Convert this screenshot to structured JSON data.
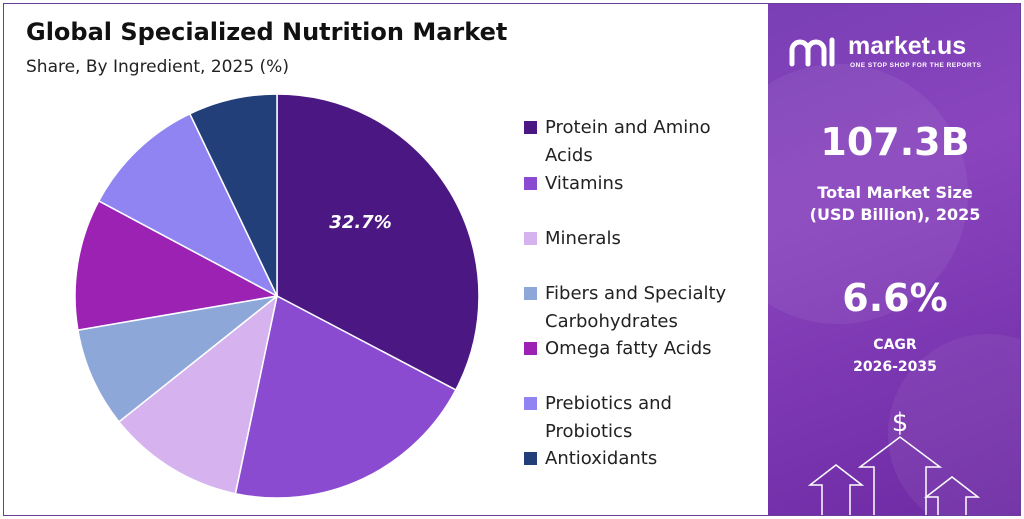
{
  "title": "Global Specialized Nutrition Market",
  "subtitle": "Share, By Ingredient, 2025 (%)",
  "chart_data": {
    "type": "pie",
    "title": "Global Specialized Nutrition Market",
    "subtitle": "Share, By Ingredient, 2025 (%)",
    "legend_position": "right",
    "slices": [
      {
        "name": "Protein and Amino Acids",
        "value": 32.7,
        "label": "32.7%",
        "color": "#4b1782"
      },
      {
        "name": "Vitamins",
        "value": 20.6,
        "label": "",
        "color": "#8a4bd0"
      },
      {
        "name": "Minerals",
        "value": 11.0,
        "label": "",
        "color": "#d6b3ee"
      },
      {
        "name": "Fibers and Specialty Carbohydrates",
        "value": 8.0,
        "label": "",
        "color": "#8ea7d9"
      },
      {
        "name": "Omega fatty Acids",
        "value": 10.5,
        "label": "",
        "color": "#9b22b2"
      },
      {
        "name": "Prebiotics and Probiotics",
        "value": 10.1,
        "label": "",
        "color": "#8f84f2"
      },
      {
        "name": "Antioxidants",
        "value": 7.1,
        "label": "",
        "color": "#223f7a"
      }
    ]
  },
  "brand": {
    "name": "market.us",
    "tagline": "ONE STOP SHOP FOR THE REPORTS"
  },
  "stats": {
    "market_size_value": "107.3B",
    "market_size_label_line1": "Total Market Size",
    "market_size_label_line2": "(USD Billion), 2025",
    "cagr_value": "6.6%",
    "cagr_label_line1": "CAGR",
    "cagr_label_line2": "2026-2035"
  },
  "icons": [
    "market-us-logo-icon",
    "dollar-icon",
    "up-arrow-icon"
  ]
}
